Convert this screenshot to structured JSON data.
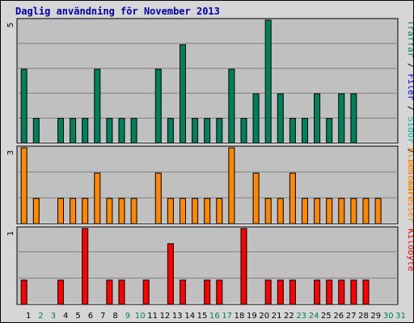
{
  "title": "Daglig användning för November 2013",
  "colors": {
    "visits": "#00805c",
    "sites": "#ff8800",
    "kbytes": "#ff0000",
    "pages": "#00b8b8",
    "files": "#0000ff",
    "title": "#0000aa",
    "weekend": "#00805c",
    "weekday": "#000000",
    "plot_bg": "#c0c0c0",
    "grid": "#808080"
  },
  "chart_data": [
    {
      "type": "bar",
      "name": "top",
      "ymax_label": "5",
      "ymax": 5,
      "right_label": [
        {
          "text": "Träffar",
          "color_key": "visits"
        },
        {
          "text": " / ",
          "color_key": "weekday"
        },
        {
          "text": "Filer",
          "color_key": "files"
        },
        {
          "text": " / ",
          "color_key": "weekday"
        },
        {
          "text": "Sidor",
          "color_key": "pages"
        },
        {
          "text": " / ",
          "color_key": "weekday"
        },
        {
          "text": "Besökare",
          "color_key": "sites"
        }
      ],
      "values": [
        3,
        1,
        0,
        1,
        1,
        1,
        3,
        1,
        1,
        1,
        0,
        3,
        1,
        4,
        1,
        1,
        1,
        3,
        1,
        2,
        5,
        2,
        1,
        1,
        2,
        1,
        2,
        2,
        0,
        0
      ],
      "color_key": "visits"
    },
    {
      "type": "bar",
      "name": "middle",
      "ymax_label": "3",
      "ymax": 3,
      "right_label": [
        {
          "text": "Klientadresser",
          "color_key": "sites"
        }
      ],
      "values": [
        3,
        1,
        0,
        1,
        1,
        1,
        2,
        1,
        1,
        1,
        0,
        2,
        1,
        1,
        1,
        1,
        1,
        3,
        0,
        2,
        1,
        1,
        2,
        1,
        1,
        1,
        1,
        1,
        1,
        1
      ],
      "color_key": "sites"
    },
    {
      "type": "bar",
      "name": "bottom",
      "ymax_label": "1",
      "ymax": 1,
      "right_label": [
        {
          "text": "Kilobyte",
          "color_key": "kbytes"
        }
      ],
      "values": [
        0.32,
        0,
        0,
        0.32,
        0,
        1,
        0,
        0.32,
        0.32,
        0,
        0.32,
        0,
        0.8,
        0.32,
        0,
        0.32,
        0.32,
        0,
        1,
        0,
        0.32,
        0.32,
        0.32,
        0,
        0.32,
        0.32,
        0.32,
        0.32,
        0.32,
        0
      ],
      "color_key": "kbytes"
    }
  ],
  "days": [
    {
      "label": "1",
      "weekend": false
    },
    {
      "label": "2",
      "weekend": true
    },
    {
      "label": "3",
      "weekend": true
    },
    {
      "label": "4",
      "weekend": false
    },
    {
      "label": "5",
      "weekend": false
    },
    {
      "label": "6",
      "weekend": false
    },
    {
      "label": "7",
      "weekend": false
    },
    {
      "label": "8",
      "weekend": false
    },
    {
      "label": "9",
      "weekend": true
    },
    {
      "label": "10",
      "weekend": true
    },
    {
      "label": "11",
      "weekend": false
    },
    {
      "label": "12",
      "weekend": false
    },
    {
      "label": "13",
      "weekend": false
    },
    {
      "label": "14",
      "weekend": false
    },
    {
      "label": "15",
      "weekend": false
    },
    {
      "label": "16",
      "weekend": true
    },
    {
      "label": "17",
      "weekend": true
    },
    {
      "label": "18",
      "weekend": false
    },
    {
      "label": "19",
      "weekend": false
    },
    {
      "label": "20",
      "weekend": false
    },
    {
      "label": "21",
      "weekend": false
    },
    {
      "label": "22",
      "weekend": false
    },
    {
      "label": "23",
      "weekend": true
    },
    {
      "label": "24",
      "weekend": true
    },
    {
      "label": "25",
      "weekend": false
    },
    {
      "label": "26",
      "weekend": false
    },
    {
      "label": "27",
      "weekend": false
    },
    {
      "label": "28",
      "weekend": false
    },
    {
      "label": "29",
      "weekend": false
    },
    {
      "label": "30",
      "weekend": true
    },
    {
      "label": "31",
      "weekend": true
    }
  ]
}
